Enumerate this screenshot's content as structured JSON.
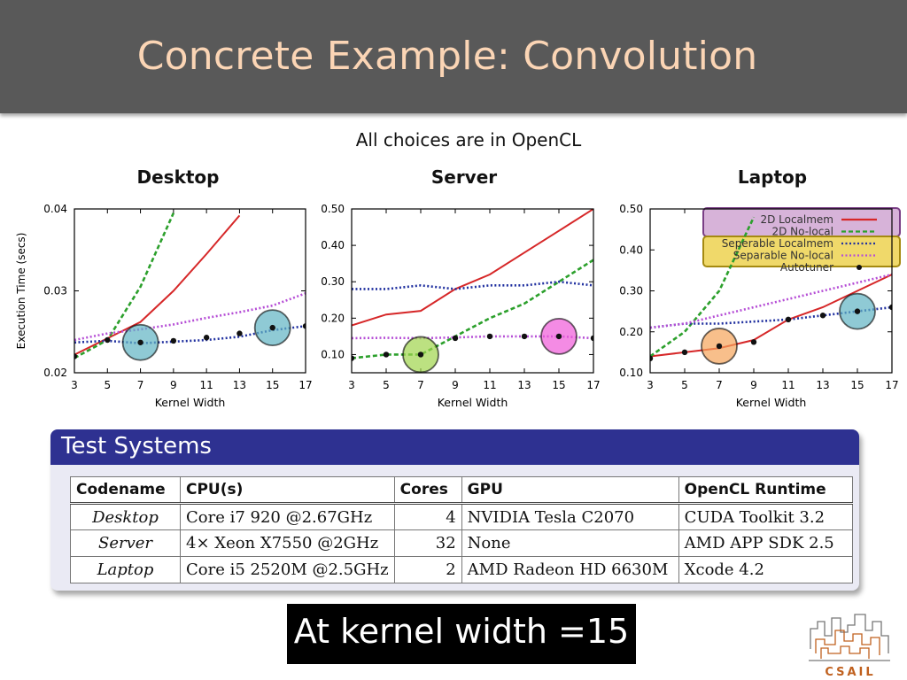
{
  "slide": {
    "title": "Concrete Example: Convolution",
    "subtitle": "All choices are in OpenCL"
  },
  "panel_titles": [
    "Desktop",
    "Server",
    "Laptop"
  ],
  "chart_data": [
    {
      "type": "line",
      "title": "Desktop",
      "xlabel": "Kernel Width",
      "ylabel": "Execution Time (secs)",
      "xlim": [
        3,
        17
      ],
      "ylim": [
        0.02,
        0.04
      ],
      "xticks": [
        3,
        5,
        7,
        9,
        11,
        13,
        15,
        17
      ],
      "xtick_labels": [
        "3",
        "5",
        "7",
        "9",
        "11",
        "13",
        "15",
        "17"
      ],
      "yticks": [
        0.02,
        0.03,
        0.04
      ],
      "ytick_labels": [
        "0.02",
        "0.03",
        "0.04"
      ],
      "x": [
        3,
        5,
        7,
        9,
        11,
        13,
        15,
        17
      ],
      "series": [
        {
          "name": "2D Localmem",
          "color": "#d62728",
          "style": "solid",
          "values": [
            0.0222,
            0.0242,
            0.0262,
            0.03,
            0.0345,
            0.0392,
            null,
            null
          ]
        },
        {
          "name": "2D No-local",
          "color": "#2ca02c",
          "style": "dashed",
          "values": [
            0.0218,
            0.024,
            0.0305,
            0.0395,
            null,
            null,
            null,
            null
          ]
        },
        {
          "name": "Seperable Localmem",
          "color": "#1f2f9f",
          "style": "dotted",
          "values": [
            0.0237,
            0.0239,
            0.0236,
            0.0238,
            0.024,
            0.0244,
            0.0252,
            0.0257
          ]
        },
        {
          "name": "Seperable No-local",
          "color": "#b64fd6",
          "style": "dotted",
          "values": [
            0.024,
            0.0248,
            0.0253,
            0.0259,
            0.0267,
            0.0274,
            0.0282,
            0.0297
          ]
        },
        {
          "name": "Autotuner",
          "color": "#111111",
          "style": "points",
          "values": [
            0.022,
            0.024,
            0.0237,
            0.0239,
            0.0243,
            0.0248,
            0.0255,
            0.0257
          ]
        }
      ],
      "highlights": [
        {
          "x": 7,
          "y": 0.0237,
          "color": "#5fb3c3"
        },
        {
          "x": 15,
          "y": 0.0255,
          "color": "#5fb3c3"
        }
      ]
    },
    {
      "type": "line",
      "title": "Server",
      "xlabel": "Kernel Width",
      "ylabel": "",
      "xlim": [
        3,
        17
      ],
      "ylim": [
        0.05,
        0.5
      ],
      "xticks": [
        3,
        5,
        7,
        9,
        11,
        13,
        15,
        17
      ],
      "xtick_labels": [
        "3",
        "5",
        "7",
        "9",
        "11",
        "13",
        "15",
        "17"
      ],
      "yticks": [
        0.1,
        0.2,
        0.3,
        0.4,
        0.5
      ],
      "ytick_labels": [
        "0.10",
        "0.20",
        "0.30",
        "0.40",
        "0.50"
      ],
      "x": [
        3,
        5,
        7,
        9,
        11,
        13,
        15,
        17
      ],
      "series": [
        {
          "name": "2D Localmem",
          "color": "#d62728",
          "style": "solid",
          "values": [
            0.18,
            0.21,
            0.22,
            0.28,
            0.32,
            0.38,
            0.44,
            0.5
          ]
        },
        {
          "name": "2D No-local",
          "color": "#2ca02c",
          "style": "dashed",
          "values": [
            0.09,
            0.1,
            0.1,
            0.15,
            0.2,
            0.24,
            0.3,
            0.36
          ]
        },
        {
          "name": "Seperable Localmem",
          "color": "#1f2f9f",
          "style": "dotted",
          "values": [
            0.28,
            0.28,
            0.29,
            0.28,
            0.29,
            0.29,
            0.3,
            0.29
          ]
        },
        {
          "name": "Seperable No-local",
          "color": "#b64fd6",
          "style": "dotted",
          "values": [
            0.145,
            0.146,
            0.145,
            0.147,
            0.15,
            0.15,
            0.15,
            0.145
          ]
        },
        {
          "name": "Autotuner",
          "color": "#111111",
          "style": "points",
          "values": [
            0.09,
            0.1,
            0.1,
            0.145,
            0.15,
            0.15,
            0.15,
            0.145
          ]
        }
      ],
      "highlights": [
        {
          "x": 7,
          "y": 0.1,
          "color": "#9fd44b"
        },
        {
          "x": 15,
          "y": 0.15,
          "color": "#f05ad8"
        }
      ]
    },
    {
      "type": "line",
      "title": "Laptop",
      "xlabel": "Kernel Width",
      "ylabel": "",
      "xlim": [
        3,
        17
      ],
      "ylim": [
        0.1,
        0.5
      ],
      "xticks": [
        3,
        5,
        7,
        9,
        11,
        13,
        15,
        17
      ],
      "xtick_labels": [
        "3",
        "5",
        "7",
        "9",
        "11",
        "13",
        "15",
        "17"
      ],
      "yticks": [
        0.1,
        0.2,
        0.3,
        0.4,
        0.5
      ],
      "ytick_labels": [
        "0.10",
        "0.20",
        "0.30",
        "0.40",
        "0.50"
      ],
      "x": [
        3,
        5,
        7,
        9,
        11,
        13,
        15,
        17
      ],
      "series": [
        {
          "name": "2D Localmem",
          "color": "#d62728",
          "style": "solid",
          "values": [
            0.14,
            0.15,
            0.16,
            0.18,
            0.23,
            0.26,
            0.3,
            0.34
          ]
        },
        {
          "name": "2D No-local",
          "color": "#2ca02c",
          "style": "dashed",
          "values": [
            0.14,
            0.2,
            0.3,
            0.48,
            null,
            null,
            null,
            null
          ]
        },
        {
          "name": "Seperable Localmem",
          "color": "#1f2f9f",
          "style": "dotted",
          "values": [
            0.21,
            0.22,
            0.22,
            0.225,
            0.23,
            0.24,
            0.25,
            0.26
          ]
        },
        {
          "name": "Seperable No-local",
          "color": "#b64fd6",
          "style": "dotted",
          "values": [
            0.21,
            0.22,
            0.24,
            0.26,
            0.28,
            0.3,
            0.32,
            0.34
          ]
        },
        {
          "name": "Autotuner",
          "color": "#111111",
          "style": "points",
          "values": [
            0.135,
            0.15,
            0.165,
            0.175,
            0.23,
            0.24,
            0.25,
            0.26
          ]
        }
      ],
      "legend": {
        "placement": "top-right",
        "entries": [
          "2D Localmem",
          "2D No-local",
          "Seperable Localmem",
          "Separable No-local",
          "Autotuner"
        ]
      },
      "highlights": [
        {
          "x": 7,
          "y": 0.165,
          "color": "#f5a45a"
        },
        {
          "x": 15,
          "y": 0.25,
          "color": "#5fb3c3"
        }
      ]
    }
  ],
  "test_systems": {
    "title": "Test Systems",
    "columns": [
      "Codename",
      "CPU(s)",
      "Cores",
      "GPU",
      "OpenCL Runtime"
    ],
    "rows": [
      [
        "Desktop",
        "Core i7 920 @2.67GHz",
        "4",
        "NVIDIA Tesla C2070",
        "CUDA Toolkit 3.2"
      ],
      [
        "Server",
        "4× Xeon X7550 @2GHz",
        "32",
        "None",
        "AMD APP SDK 2.5"
      ],
      [
        "Laptop",
        "Core i5 2520M @2.5GHz",
        "2",
        "AMD Radeon HD 6630M",
        "Xcode 4.2"
      ]
    ]
  },
  "callout": {
    "text": "At kernel width =15"
  },
  "logo": {
    "text": "CSAIL",
    "color": "#c0611f"
  },
  "colors": {
    "title_bar": "#595959",
    "title_text": "#fbd5b5",
    "box_header": "#2e3191",
    "box_body": "#eaeaf4",
    "legend_purple_bg": "#d7b3d9",
    "legend_yellow_bg": "#f0d96a"
  }
}
